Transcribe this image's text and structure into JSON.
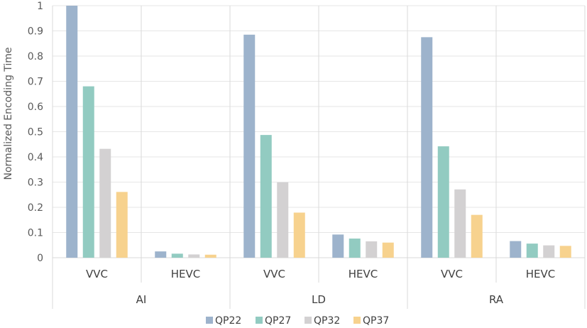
{
  "chart_data": {
    "type": "bar",
    "title": "",
    "ylabel": "Normalized Encoding Time",
    "xlabel": "",
    "ylim": [
      0,
      1
    ],
    "yticks": [
      "0",
      "0.1",
      "0.2",
      "0.3",
      "0.4",
      "0.5",
      "0.6",
      "0.7",
      "0.8",
      "0.9",
      "1"
    ],
    "grid": true,
    "legend_position": "bottom",
    "groups": [
      {
        "label": "AI",
        "categories": [
          "VVC",
          "HEVC"
        ]
      },
      {
        "label": "LD",
        "categories": [
          "VVC",
          "HEVC"
        ]
      },
      {
        "label": "RA",
        "categories": [
          "VVC",
          "HEVC"
        ]
      }
    ],
    "categories": [
      "AI / VVC",
      "AI / HEVC",
      "LD / VVC",
      "LD / HEVC",
      "RA / VVC",
      "RA / HEVC"
    ],
    "series": [
      {
        "name": "QP22",
        "color": "#9db3cc",
        "values": [
          1.0,
          0.025,
          0.885,
          0.092,
          0.875,
          0.066
        ]
      },
      {
        "name": "QP27",
        "color": "#92cbc1",
        "values": [
          0.68,
          0.016,
          0.487,
          0.076,
          0.442,
          0.056
        ]
      },
      {
        "name": "QP32",
        "color": "#d3d1d2",
        "values": [
          0.432,
          0.013,
          0.299,
          0.065,
          0.271,
          0.049
        ]
      },
      {
        "name": "QP37",
        "color": "#f7d28e",
        "values": [
          0.261,
          0.012,
          0.179,
          0.06,
          0.17,
          0.047
        ]
      }
    ]
  }
}
